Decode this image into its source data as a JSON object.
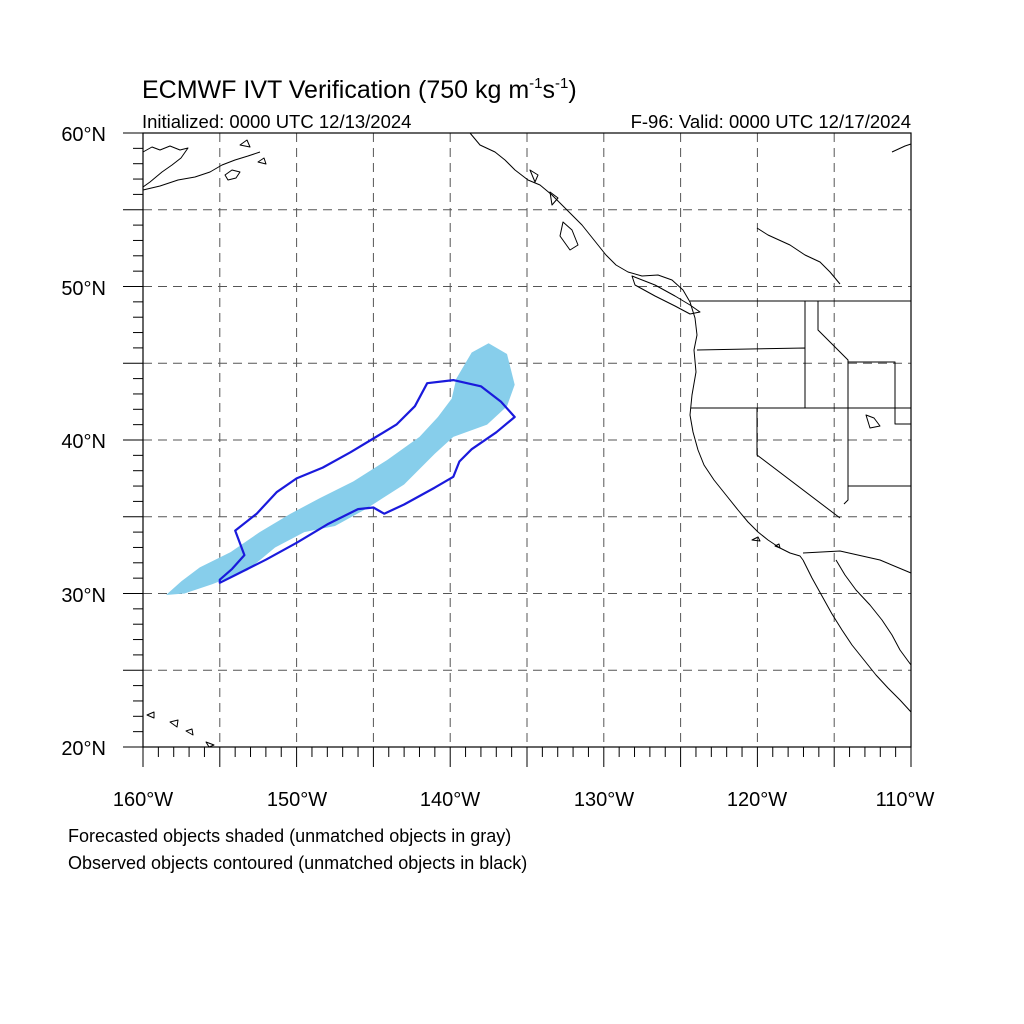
{
  "header": {
    "title_main": "ECMWF IVT Verification (750 kg m",
    "title_sup1": "-1",
    "title_mid": "s",
    "title_sup2": "-1",
    "title_end": ")",
    "initialized": "Initialized: 0000 UTC 12/13/2024",
    "valid": "F-96: Valid: 0000 UTC 12/17/2024"
  },
  "map": {
    "lon_range": [
      -160,
      -110
    ],
    "lat_range": [
      20,
      60
    ],
    "gridlines": "dashed",
    "lat_labels": [
      {
        "value": 60,
        "text": "60°N"
      },
      {
        "value": 50,
        "text": "50°N"
      },
      {
        "value": 40,
        "text": "40°N"
      },
      {
        "value": 30,
        "text": "30°N"
      },
      {
        "value": 20,
        "text": "20°N"
      }
    ],
    "lon_labels": [
      {
        "value": -160,
        "text": "160°W"
      },
      {
        "value": -150,
        "text": "150°W"
      },
      {
        "value": -140,
        "text": "140°W"
      },
      {
        "value": -130,
        "text": "130°W"
      },
      {
        "value": -120,
        "text": "120°W"
      },
      {
        "value": -110,
        "text": "110°W"
      }
    ]
  },
  "objects": {
    "forecast_fill_color": "#87ceeb",
    "observed_contour_color": "#1a1adc",
    "forecast_object": [
      [
        -158.5,
        29.9
      ],
      [
        -157.5,
        30.8
      ],
      [
        -156.3,
        31.7
      ],
      [
        -154.3,
        32.7
      ],
      [
        -152.4,
        34.0
      ],
      [
        -150.4,
        35.2
      ],
      [
        -148.5,
        36.2
      ],
      [
        -146.3,
        37.3
      ],
      [
        -144.1,
        38.7
      ],
      [
        -142.0,
        40.2
      ],
      [
        -140.8,
        41.5
      ],
      [
        -139.9,
        42.7
      ],
      [
        -139.6,
        44.0
      ],
      [
        -138.6,
        45.7
      ],
      [
        -137.5,
        46.3
      ],
      [
        -136.3,
        45.6
      ],
      [
        -135.8,
        43.6
      ],
      [
        -136.3,
        42.2
      ],
      [
        -137.6,
        41.0
      ],
      [
        -139.8,
        40.2
      ],
      [
        -141.0,
        39.1
      ],
      [
        -143.0,
        37.1
      ],
      [
        -145.5,
        35.5
      ],
      [
        -147.5,
        34.4
      ],
      [
        -149.5,
        34.0
      ],
      [
        -151.4,
        33.0
      ],
      [
        -153.2,
        31.5
      ],
      [
        -155.5,
        30.6
      ],
      [
        -157.3,
        30.0
      ]
    ],
    "observed_object": [
      [
        -155.0,
        30.7
      ],
      [
        -154.0,
        31.2
      ],
      [
        -152.0,
        32.2
      ],
      [
        -150.0,
        33.3
      ],
      [
        -148.0,
        34.5
      ],
      [
        -146.0,
        35.5
      ],
      [
        -145.0,
        35.6
      ],
      [
        -144.3,
        35.2
      ],
      [
        -143.0,
        35.8
      ],
      [
        -141.0,
        36.9
      ],
      [
        -139.8,
        37.6
      ],
      [
        -139.4,
        38.6
      ],
      [
        -138.6,
        39.4
      ],
      [
        -137.0,
        40.5
      ],
      [
        -135.8,
        41.5
      ],
      [
        -136.7,
        42.5
      ],
      [
        -138.0,
        43.5
      ],
      [
        -139.8,
        43.9
      ],
      [
        -141.5,
        43.7
      ],
      [
        -142.3,
        42.2
      ],
      [
        -143.5,
        41.0
      ],
      [
        -145.0,
        40.1
      ],
      [
        -146.5,
        39.2
      ],
      [
        -148.3,
        38.2
      ],
      [
        -150.0,
        37.5
      ],
      [
        -151.3,
        36.6
      ],
      [
        -152.6,
        35.2
      ],
      [
        -154.0,
        34.1
      ],
      [
        -153.4,
        32.5
      ],
      [
        -154.2,
        31.6
      ],
      [
        -155.0,
        30.9
      ]
    ]
  },
  "notes": {
    "line1": "Forecasted objects shaded (unmatched objects in gray)",
    "line2": "Observed objects contoured (unmatched objects in black)"
  }
}
